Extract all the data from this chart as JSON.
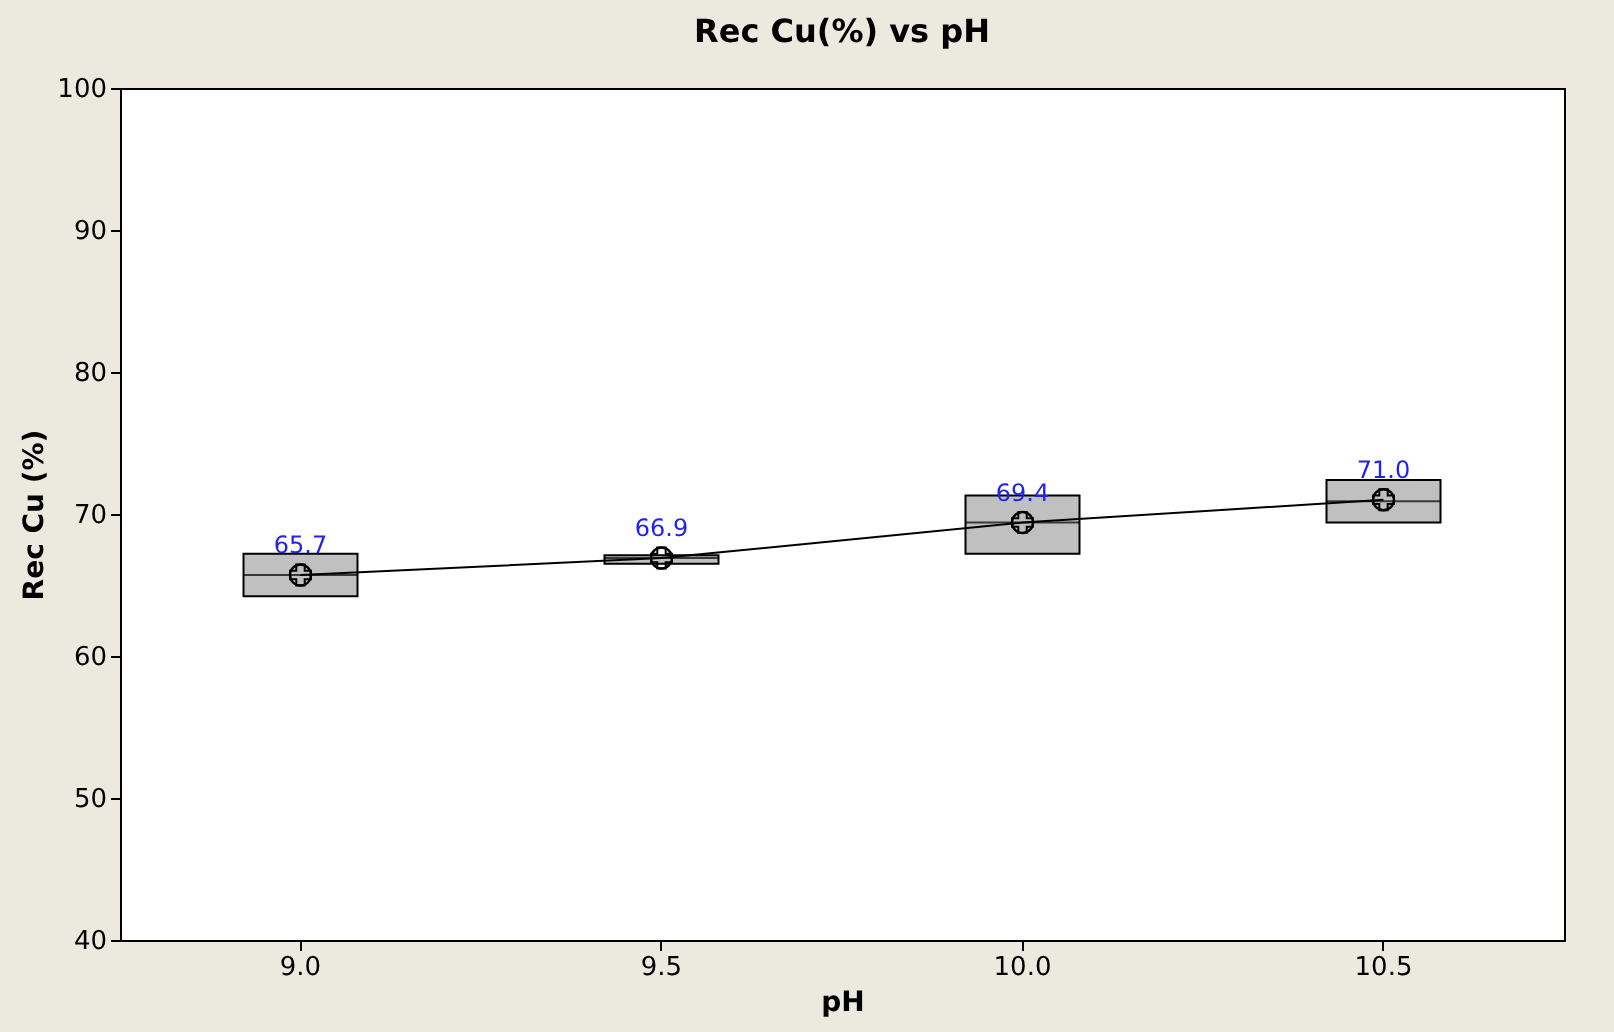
{
  "chart_data": {
    "type": "box",
    "title": "Rec Cu(%) vs pH",
    "xlabel": "pH",
    "ylabel": "Rec Cu (%)",
    "categories": [
      "9.0",
      "9.5",
      "10.0",
      "10.5"
    ],
    "ylim": [
      40,
      100
    ],
    "yticks": [
      40,
      50,
      60,
      70,
      80,
      90,
      100
    ],
    "grid": false,
    "marker": "circle",
    "series": [
      {
        "color": "#c0c0c0",
        "boxes": [
          {
            "low": 64.2,
            "q1": 64.2,
            "median": 65.7,
            "q3": 67.2,
            "high": 67.2,
            "mean": 65.7
          },
          {
            "low": 66.5,
            "q1": 66.5,
            "median": 66.9,
            "q3": 67.1,
            "high": 67.1,
            "mean": 66.9
          },
          {
            "low": 67.2,
            "q1": 67.2,
            "median": 69.4,
            "q3": 71.3,
            "high": 71.3,
            "mean": 69.4
          },
          {
            "low": 69.4,
            "q1": 69.4,
            "median": 70.9,
            "q3": 72.4,
            "high": 72.4,
            "mean": 71.0
          }
        ],
        "value_labels": [
          "65.7",
          "66.9",
          "69.4",
          "71.0"
        ]
      }
    ]
  }
}
